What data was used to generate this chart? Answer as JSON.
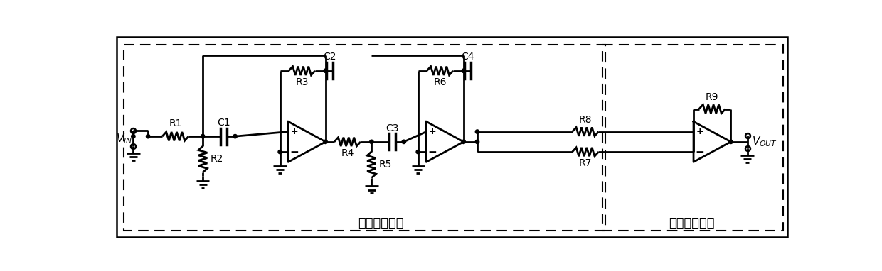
{
  "bg_color": "#ffffff",
  "line_color": "#000000",
  "fig_width": 12.4,
  "fig_height": 3.82,
  "module1_label": "幅相变换模块",
  "module2_label": "差分合成模块",
  "components": {
    "R1": "R1",
    "R2": "R2",
    "R3": "R3",
    "R4": "R4",
    "R5": "R5",
    "R6": "R6",
    "R7": "R7",
    "R8": "R8",
    "R9": "R9",
    "C1": "C1",
    "C2": "C2",
    "C3": "C3",
    "C4": "C4"
  }
}
